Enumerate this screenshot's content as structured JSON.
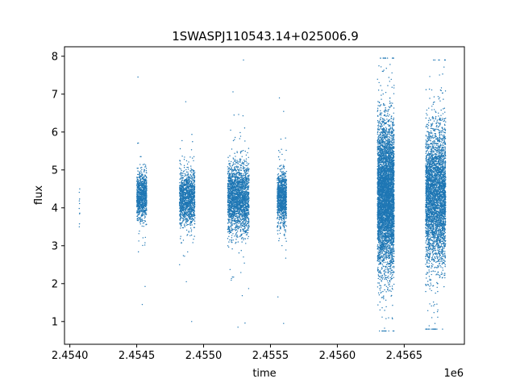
{
  "chart_data": {
    "type": "scatter",
    "title": "1SWASPJ110543.14+025006.9",
    "xlabel": "time",
    "ylabel": "flux",
    "x_offset_label": "1e6",
    "xlim": [
      2453960,
      2456950
    ],
    "ylim": [
      0.4,
      8.25
    ],
    "x_ticks": [
      2454000,
      2454500,
      2455000,
      2455500,
      2456000,
      2456500
    ],
    "x_tick_labels": [
      "2.4540",
      "2.4545",
      "2.4550",
      "2.4555",
      "2.4560",
      "2.4565"
    ],
    "y_ticks": [
      1,
      2,
      3,
      4,
      5,
      6,
      7,
      8
    ],
    "y_tick_labels": [
      "1",
      "2",
      "3",
      "4",
      "5",
      "6",
      "7",
      "8"
    ],
    "grid": false,
    "legend": "none",
    "marker_color": "#1f77b4",
    "observing_seasons": [
      {
        "x_start": 2454070,
        "x_end": 2454075,
        "mean": 4.1,
        "spread": 0.35,
        "min": 3.5,
        "max": 4.5,
        "points": 8
      },
      {
        "x_start": 2454500,
        "x_end": 2454575,
        "mean": 4.3,
        "spread": 0.3,
        "min": 1.45,
        "max": 7.45,
        "points": 900
      },
      {
        "x_start": 2454820,
        "x_end": 2454935,
        "mean": 4.25,
        "spread": 0.35,
        "min": 1.0,
        "max": 6.8,
        "points": 1300
      },
      {
        "x_start": 2455180,
        "x_end": 2455340,
        "mean": 4.25,
        "spread": 0.45,
        "min": 0.85,
        "max": 7.9,
        "points": 2200
      },
      {
        "x_start": 2455550,
        "x_end": 2455620,
        "mean": 4.25,
        "spread": 0.35,
        "min": 0.95,
        "max": 6.9,
        "points": 1000
      },
      {
        "x_start": 2456300,
        "x_end": 2456425,
        "mean": 4.3,
        "spread": 0.95,
        "min": 0.75,
        "max": 7.95,
        "points": 5200
      },
      {
        "x_start": 2456660,
        "x_end": 2456810,
        "mean": 4.35,
        "spread": 0.9,
        "min": 0.8,
        "max": 7.9,
        "points": 3800
      }
    ]
  }
}
